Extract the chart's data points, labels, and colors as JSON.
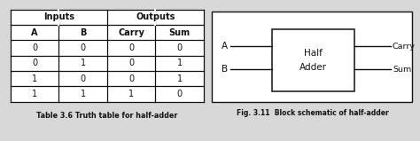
{
  "table": {
    "col_headers_row1": [
      "Inputs",
      "Outputs"
    ],
    "col_headers_row2": [
      "A",
      "B",
      "Carry",
      "Sum"
    ],
    "rows": [
      [
        0,
        0,
        0,
        0
      ],
      [
        0,
        1,
        0,
        1
      ],
      [
        1,
        0,
        0,
        1
      ],
      [
        1,
        1,
        1,
        0
      ]
    ],
    "caption": "Table 3.6 Truth table for half-adder"
  },
  "diagram": {
    "box_label_line1": "Half",
    "box_label_line2": "Adder",
    "input_labels": [
      "A",
      "B"
    ],
    "output_labels": [
      "Carry",
      "Sum"
    ],
    "caption": "Fig. 3.11  Block schematic of half-adder"
  },
  "fig_bg": "#d8d8d8",
  "panel_bg": "#ffffff",
  "border_color": "#111111",
  "text_color": "#111111",
  "caption_color": "#111111"
}
